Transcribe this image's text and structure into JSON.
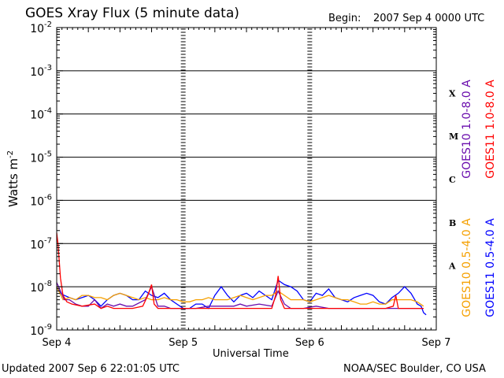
{
  "header": {
    "title": "GOES Xray Flux (5 minute data)",
    "begin_label": "Begin:",
    "begin_value": "2007 Sep 4 0000 UTC"
  },
  "footer": {
    "updated": "Updated 2007 Sep  6 22:01:05 UTC",
    "credit": "NOAA/SEC Boulder, CO USA"
  },
  "chart_data": {
    "type": "line",
    "title": "GOES Xray Flux (5 minute data)",
    "xlabel": "Universal Time",
    "ylabel": "Watts m",
    "ylabel_sup": "-2",
    "y_scale": "log",
    "ylim_exp": [
      -9,
      -2
    ],
    "xlim_days": [
      0,
      3
    ],
    "x_tick_labels": [
      "Sep 4",
      "Sep 5",
      "Sep 6",
      "Sep 7"
    ],
    "y_tick_labels": [
      {
        "exp": -2,
        "text": "10",
        "sup": "-2"
      },
      {
        "exp": -3,
        "text": "10",
        "sup": "-3"
      },
      {
        "exp": -4,
        "text": "10",
        "sup": "-4"
      },
      {
        "exp": -5,
        "text": "10",
        "sup": "-5"
      },
      {
        "exp": -6,
        "text": "10",
        "sup": "-6"
      },
      {
        "exp": -7,
        "text": "10",
        "sup": "-7"
      },
      {
        "exp": -8,
        "text": "10",
        "sup": "-8"
      },
      {
        "exp": -9,
        "text": "10",
        "sup": "-9"
      }
    ],
    "class_labels": [
      {
        "label": "X",
        "band_exp": -3.5
      },
      {
        "label": "M",
        "band_exp": -4.5
      },
      {
        "label": "C",
        "band_exp": -5.5
      },
      {
        "label": "B",
        "band_exp": -6.5
      },
      {
        "label": "A",
        "band_exp": -7.5
      }
    ],
    "grid_exps": [
      -8,
      -7,
      -6,
      -5,
      -4,
      -3
    ],
    "legend": [
      {
        "text": "GOES10 1.0-8.0 A",
        "color": "#6a0dad"
      },
      {
        "text": "GOES11 1.0-8.0 A",
        "color": "#ff0000"
      },
      {
        "text": "GOES10 0.5-4.0 A",
        "color": "#f5a000"
      },
      {
        "text": "GOES11 0.5-4.0 A",
        "color": "#0000ff"
      }
    ],
    "series": [
      {
        "name": "GOES11 0.5-4.0 A",
        "color": "#0000ff",
        "points": [
          [
            0.0,
            -8.0
          ],
          [
            0.03,
            -8.15
          ],
          [
            0.06,
            -8.2
          ],
          [
            0.1,
            -8.25
          ],
          [
            0.15,
            -8.3
          ],
          [
            0.2,
            -8.25
          ],
          [
            0.25,
            -8.2
          ],
          [
            0.3,
            -8.3
          ],
          [
            0.35,
            -8.45
          ],
          [
            0.4,
            -8.3
          ],
          [
            0.45,
            -8.2
          ],
          [
            0.5,
            -8.15
          ],
          [
            0.55,
            -8.2
          ],
          [
            0.6,
            -8.3
          ],
          [
            0.65,
            -8.3
          ],
          [
            0.7,
            -8.1
          ],
          [
            0.75,
            -8.2
          ],
          [
            0.8,
            -8.25
          ],
          [
            0.85,
            -8.15
          ],
          [
            0.9,
            -8.3
          ],
          [
            0.95,
            -8.4
          ],
          [
            1.0,
            -8.5
          ],
          [
            1.05,
            -8.5
          ],
          [
            1.1,
            -8.4
          ],
          [
            1.15,
            -8.4
          ],
          [
            1.2,
            -8.5
          ],
          [
            1.25,
            -8.2
          ],
          [
            1.3,
            -8.0
          ],
          [
            1.35,
            -8.2
          ],
          [
            1.4,
            -8.35
          ],
          [
            1.45,
            -8.2
          ],
          [
            1.5,
            -8.15
          ],
          [
            1.55,
            -8.25
          ],
          [
            1.6,
            -8.1
          ],
          [
            1.65,
            -8.2
          ],
          [
            1.7,
            -8.3
          ],
          [
            1.75,
            -7.85
          ],
          [
            1.8,
            -7.95
          ],
          [
            1.85,
            -8.0
          ],
          [
            1.9,
            -8.1
          ],
          [
            1.95,
            -8.3
          ],
          [
            2.0,
            -8.35
          ],
          [
            2.05,
            -8.15
          ],
          [
            2.1,
            -8.2
          ],
          [
            2.15,
            -8.05
          ],
          [
            2.2,
            -8.25
          ],
          [
            2.25,
            -8.3
          ],
          [
            2.3,
            -8.35
          ],
          [
            2.35,
            -8.25
          ],
          [
            2.4,
            -8.2
          ],
          [
            2.45,
            -8.15
          ],
          [
            2.5,
            -8.2
          ],
          [
            2.55,
            -8.35
          ],
          [
            2.6,
            -8.4
          ],
          [
            2.65,
            -8.25
          ],
          [
            2.7,
            -8.15
          ],
          [
            2.75,
            -8.0
          ],
          [
            2.8,
            -8.15
          ],
          [
            2.85,
            -8.4
          ],
          [
            2.88,
            -8.45
          ],
          [
            2.9,
            -8.6
          ],
          [
            2.92,
            -8.65
          ]
        ]
      },
      {
        "name": "GOES10 0.5-4.0 A",
        "color": "#f5a000",
        "points": [
          [
            0.0,
            -8.0
          ],
          [
            0.05,
            -8.3
          ],
          [
            0.1,
            -8.25
          ],
          [
            0.15,
            -8.3
          ],
          [
            0.2,
            -8.2
          ],
          [
            0.25,
            -8.2
          ],
          [
            0.3,
            -8.25
          ],
          [
            0.35,
            -8.25
          ],
          [
            0.4,
            -8.3
          ],
          [
            0.45,
            -8.2
          ],
          [
            0.5,
            -8.15
          ],
          [
            0.55,
            -8.2
          ],
          [
            0.6,
            -8.25
          ],
          [
            0.65,
            -8.3
          ],
          [
            0.7,
            -8.25
          ],
          [
            0.75,
            -8.3
          ],
          [
            0.8,
            -8.3
          ],
          [
            0.85,
            -8.25
          ],
          [
            0.9,
            -8.3
          ],
          [
            0.95,
            -8.3
          ],
          [
            1.0,
            -8.35
          ],
          [
            1.05,
            -8.35
          ],
          [
            1.1,
            -8.3
          ],
          [
            1.15,
            -8.3
          ],
          [
            1.2,
            -8.25
          ],
          [
            1.25,
            -8.3
          ],
          [
            1.3,
            -8.3
          ],
          [
            1.35,
            -8.3
          ],
          [
            1.4,
            -8.25
          ],
          [
            1.45,
            -8.2
          ],
          [
            1.5,
            -8.25
          ],
          [
            1.55,
            -8.3
          ],
          [
            1.6,
            -8.25
          ],
          [
            1.65,
            -8.2
          ],
          [
            1.7,
            -8.2
          ],
          [
            1.75,
            -8.1
          ],
          [
            1.8,
            -8.2
          ],
          [
            1.85,
            -8.3
          ],
          [
            1.9,
            -8.3
          ],
          [
            1.95,
            -8.3
          ],
          [
            2.0,
            -8.35
          ],
          [
            2.05,
            -8.3
          ],
          [
            2.1,
            -8.25
          ],
          [
            2.15,
            -8.2
          ],
          [
            2.2,
            -8.25
          ],
          [
            2.25,
            -8.3
          ],
          [
            2.3,
            -8.3
          ],
          [
            2.35,
            -8.35
          ],
          [
            2.4,
            -8.4
          ],
          [
            2.45,
            -8.4
          ],
          [
            2.5,
            -8.35
          ],
          [
            2.55,
            -8.4
          ],
          [
            2.6,
            -8.4
          ],
          [
            2.65,
            -8.3
          ],
          [
            2.7,
            -8.3
          ],
          [
            2.75,
            -8.3
          ],
          [
            2.8,
            -8.3
          ],
          [
            2.85,
            -8.35
          ],
          [
            2.9,
            -8.45
          ]
        ]
      },
      {
        "name": "GOES10 1.0-8.0 A",
        "color": "#6a0dad",
        "points": [
          [
            0.0,
            -7.9
          ],
          [
            0.03,
            -8.1
          ],
          [
            0.06,
            -8.3
          ],
          [
            0.1,
            -8.3
          ],
          [
            0.15,
            -8.4
          ],
          [
            0.2,
            -8.45
          ],
          [
            0.25,
            -8.45
          ],
          [
            0.3,
            -8.3
          ],
          [
            0.35,
            -8.5
          ],
          [
            0.4,
            -8.4
          ],
          [
            0.45,
            -8.45
          ],
          [
            0.5,
            -8.4
          ],
          [
            0.55,
            -8.45
          ],
          [
            0.6,
            -8.45
          ],
          [
            0.7,
            -8.3
          ],
          [
            0.75,
            -8.0
          ],
          [
            0.8,
            -8.45
          ],
          [
            0.85,
            -8.45
          ],
          [
            0.9,
            -8.5
          ],
          [
            0.95,
            -8.5
          ],
          [
            1.0,
            -8.5
          ],
          [
            1.1,
            -8.5
          ],
          [
            1.2,
            -8.45
          ],
          [
            1.3,
            -8.45
          ],
          [
            1.4,
            -8.45
          ],
          [
            1.45,
            -8.4
          ],
          [
            1.5,
            -8.45
          ],
          [
            1.6,
            -8.4
          ],
          [
            1.7,
            -8.45
          ],
          [
            1.75,
            -8.1
          ],
          [
            1.8,
            -8.4
          ],
          [
            1.85,
            -8.5
          ],
          [
            1.95,
            -8.5
          ],
          [
            2.05,
            -8.45
          ],
          [
            2.15,
            -8.5
          ],
          [
            2.25,
            -8.5
          ],
          [
            2.4,
            -8.5
          ],
          [
            2.5,
            -8.5
          ],
          [
            2.6,
            -8.5
          ],
          [
            2.7,
            -8.5
          ],
          [
            2.8,
            -8.5
          ],
          [
            2.9,
            -8.5
          ]
        ]
      },
      {
        "name": "GOES11 1.0-8.0 A",
        "color": "#ff0000",
        "points": [
          [
            0.0,
            -6.75
          ],
          [
            0.01,
            -7.0
          ],
          [
            0.02,
            -7.4
          ],
          [
            0.03,
            -7.8
          ],
          [
            0.05,
            -8.2
          ],
          [
            0.08,
            -8.35
          ],
          [
            0.12,
            -8.4
          ],
          [
            0.2,
            -8.45
          ],
          [
            0.3,
            -8.4
          ],
          [
            0.35,
            -8.5
          ],
          [
            0.4,
            -8.45
          ],
          [
            0.45,
            -8.5
          ],
          [
            0.55,
            -8.5
          ],
          [
            0.6,
            -8.5
          ],
          [
            0.68,
            -8.45
          ],
          [
            0.72,
            -8.2
          ],
          [
            0.75,
            -7.95
          ],
          [
            0.77,
            -8.4
          ],
          [
            0.8,
            -8.5
          ],
          [
            0.9,
            -8.5
          ],
          [
            1.0,
            -8.5
          ],
          [
            1.1,
            -8.5
          ],
          [
            1.2,
            -8.5
          ],
          [
            1.3,
            -8.5
          ],
          [
            1.4,
            -8.5
          ],
          [
            1.5,
            -8.5
          ],
          [
            1.6,
            -8.5
          ],
          [
            1.7,
            -8.5
          ],
          [
            1.73,
            -8.2
          ],
          [
            1.75,
            -7.75
          ],
          [
            1.77,
            -8.3
          ],
          [
            1.8,
            -8.5
          ],
          [
            1.9,
            -8.5
          ],
          [
            2.0,
            -8.5
          ],
          [
            2.1,
            -8.5
          ],
          [
            2.2,
            -8.5
          ],
          [
            2.3,
            -8.5
          ],
          [
            2.4,
            -8.5
          ],
          [
            2.5,
            -8.5
          ],
          [
            2.6,
            -8.5
          ],
          [
            2.66,
            -8.45
          ],
          [
            2.68,
            -8.2
          ],
          [
            2.7,
            -8.5
          ],
          [
            2.8,
            -8.5
          ],
          [
            2.9,
            -8.5
          ]
        ]
      }
    ]
  }
}
